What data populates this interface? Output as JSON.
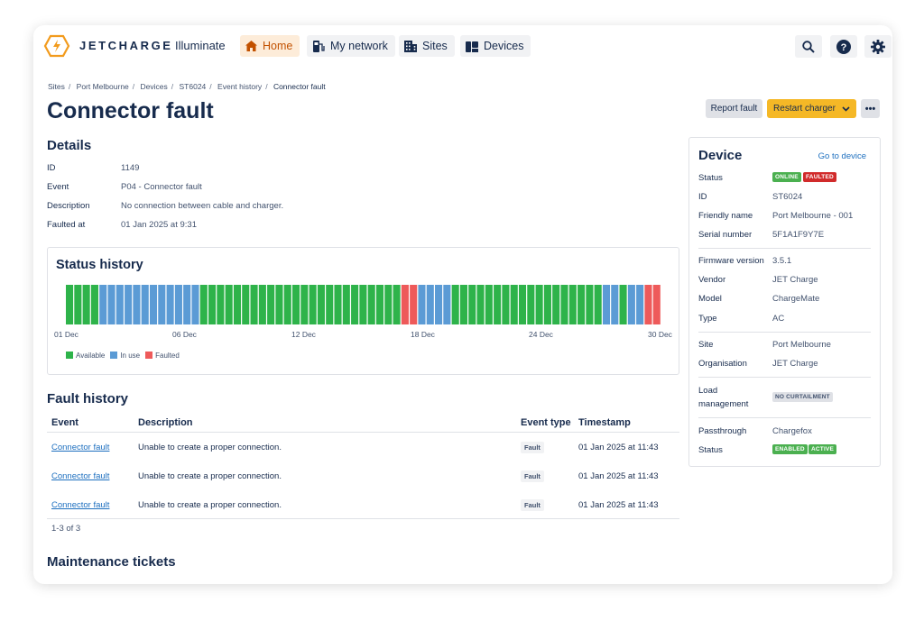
{
  "nav": {
    "brand": "JETCHARGE",
    "product": "Illuminate",
    "items": [
      {
        "label": "Home",
        "icon": "home-icon",
        "active": true
      },
      {
        "label": "My network",
        "icon": "charger-icon",
        "active": false
      },
      {
        "label": "Sites",
        "icon": "building-icon",
        "active": false
      },
      {
        "label": "Devices",
        "icon": "devices-icon",
        "active": false
      }
    ],
    "right_icons": [
      "search-icon",
      "help-icon",
      "gear-icon"
    ]
  },
  "breadcrumb": [
    "Sites",
    "Port Melbourne",
    "Devices",
    "ST6024",
    "Event history",
    "Connector fault"
  ],
  "page_title": "Connector fault",
  "actions": {
    "report": "Report fault",
    "restart": "Restart charger",
    "more": "•••"
  },
  "details": {
    "heading": "Details",
    "rows": [
      {
        "label": "ID",
        "value": "1149"
      },
      {
        "label": "Event",
        "value": "P04 - Connector fault"
      },
      {
        "label": "Description",
        "value": "No connection between cable and charger."
      },
      {
        "label": "Faulted at",
        "value": "01 Jan 2025 at 9:31"
      }
    ]
  },
  "status_history": {
    "heading": "Status history",
    "x_ticks": [
      "01 Dec",
      "06 Dec",
      "12 Dec",
      "18 Dec",
      "24 Dec",
      "30 Dec"
    ],
    "legend": [
      {
        "label": "Available",
        "color": "#2eb34a"
      },
      {
        "label": "In use",
        "color": "#5b9bd5"
      },
      {
        "label": "Faulted",
        "color": "#ee5a5a"
      }
    ],
    "chart_data": {
      "type": "bar",
      "states": [
        "A",
        "A",
        "A",
        "A",
        "U",
        "U",
        "U",
        "U",
        "U",
        "U",
        "U",
        "U",
        "U",
        "U",
        "U",
        "U",
        "A",
        "A",
        "A",
        "A",
        "A",
        "A",
        "A",
        "A",
        "A",
        "A",
        "A",
        "A",
        "A",
        "A",
        "A",
        "A",
        "A",
        "A",
        "A",
        "A",
        "A",
        "A",
        "A",
        "A",
        "F",
        "F",
        "U",
        "U",
        "U",
        "U",
        "A",
        "A",
        "A",
        "A",
        "A",
        "A",
        "A",
        "A",
        "A",
        "A",
        "A",
        "A",
        "A",
        "A",
        "A",
        "A",
        "A",
        "A",
        "U",
        "U",
        "A",
        "U",
        "U",
        "F",
        "F"
      ]
    }
  },
  "fault_history": {
    "heading": "Fault history",
    "columns": [
      "Event",
      "Description",
      "Event type",
      "Timestamp"
    ],
    "rows": [
      {
        "event": "Connector fault",
        "description": "Unable to create a proper connection.",
        "type": "Fault",
        "timestamp": "01 Jan 2025 at 11:43"
      },
      {
        "event": "Connector fault",
        "description": "Unable to create a proper connection.",
        "type": "Fault",
        "timestamp": "01 Jan 2025 at 11:43"
      },
      {
        "event": "Connector fault",
        "description": "Unable to create a proper connection.",
        "type": "Fault",
        "timestamp": "01 Jan 2025 at 11:43"
      }
    ],
    "pager": "1-3 of 3"
  },
  "maintenance": {
    "heading": "Maintenance tickets"
  },
  "device": {
    "heading": "Device",
    "link": "Go to device",
    "status_label": "Status",
    "status_badges": [
      "ONLINE",
      "FAULTED"
    ],
    "id_label": "ID",
    "id": "ST6024",
    "friendly_label": "Friendly name",
    "friendly": "Port Melbourne - 001",
    "serial_label": "Serial number",
    "serial": "5F1A1F9Y7E",
    "firmware_label": "Firmware version",
    "firmware": "3.5.1",
    "vendor_label": "Vendor",
    "vendor": "JET Charge",
    "model_label": "Model",
    "model": "ChargeMate",
    "type_label": "Type",
    "type": "AC",
    "site_label": "Site",
    "site": "Port Melbourne",
    "org_label": "Organisation",
    "org": "JET Charge",
    "load_label_1": "Load",
    "load_label_2": "management",
    "load_badge": "NO CURTAILMENT",
    "pass_label": "Passthrough",
    "pass": "Chargefox",
    "pass_status_label": "Status",
    "pass_badges": [
      "ENABLED",
      "ACTIVE"
    ]
  }
}
